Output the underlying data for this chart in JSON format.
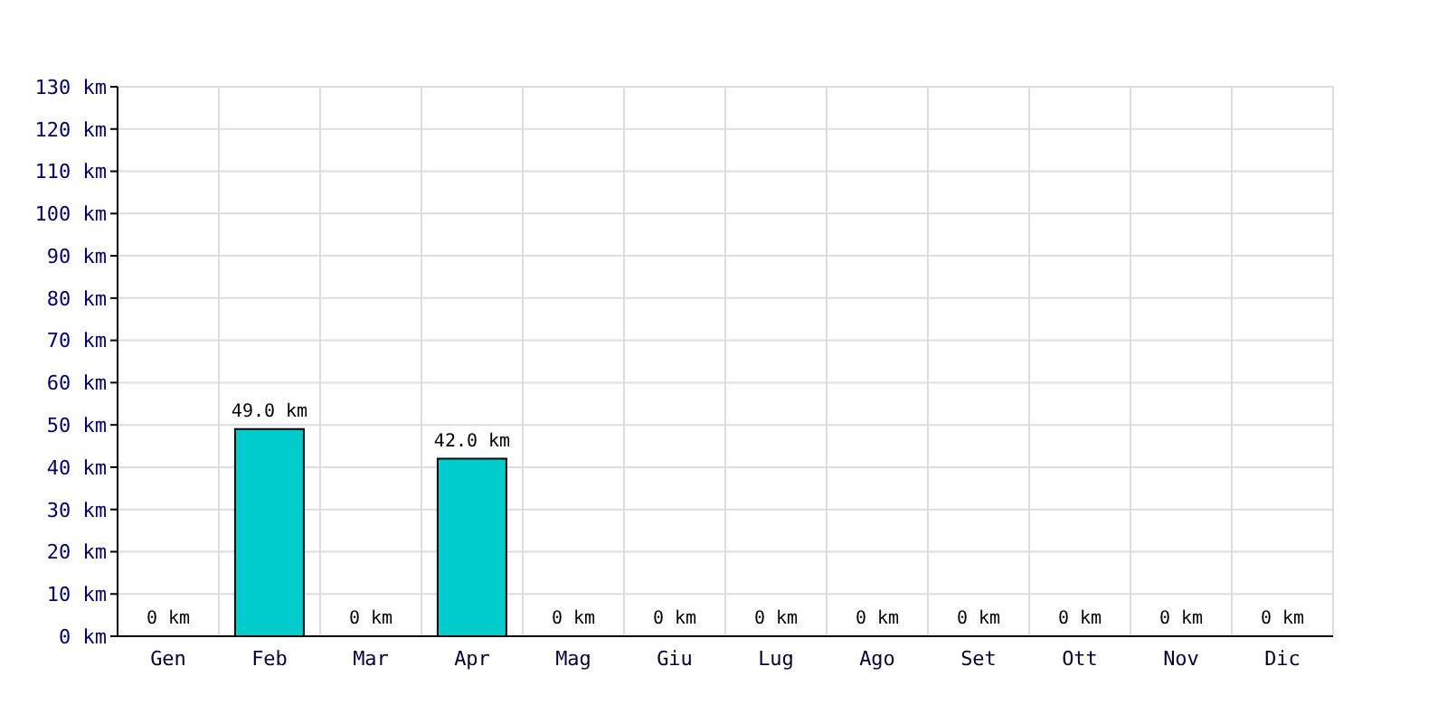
{
  "chart_data": {
    "type": "bar",
    "categories": [
      "Gen",
      "Feb",
      "Mar",
      "Apr",
      "Mag",
      "Giu",
      "Lug",
      "Ago",
      "Set",
      "Ott",
      "Nov",
      "Dic"
    ],
    "values": [
      0,
      49,
      0,
      42,
      0,
      0,
      0,
      0,
      0,
      0,
      0,
      0
    ],
    "value_labels": [
      "0 km",
      "49.0 km",
      "0 km",
      "42.0 km",
      "0 km",
      "0 km",
      "0 km",
      "0 km",
      "0 km",
      "0 km",
      "0 km",
      "0 km"
    ],
    "color": "#00cccc",
    "ylim": [
      0,
      130
    ],
    "yticks": [
      {
        "value": 0,
        "label": "0 km"
      },
      {
        "value": 10,
        "label": "10 km"
      },
      {
        "value": 20,
        "label": "20 km"
      },
      {
        "value": 30,
        "label": "30 km"
      },
      {
        "value": 40,
        "label": "40 km"
      },
      {
        "value": 50,
        "label": "50 km"
      },
      {
        "value": 60,
        "label": "60 km"
      },
      {
        "value": 70,
        "label": "70 km"
      },
      {
        "value": 80,
        "label": "80 km"
      },
      {
        "value": 90,
        "label": "90 km"
      },
      {
        "value": 100,
        "label": "100 km"
      },
      {
        "value": 110,
        "label": "110 km"
      },
      {
        "value": 120,
        "label": "120 km"
      },
      {
        "value": 130,
        "label": "130 km"
      }
    ],
    "grid": true
  }
}
